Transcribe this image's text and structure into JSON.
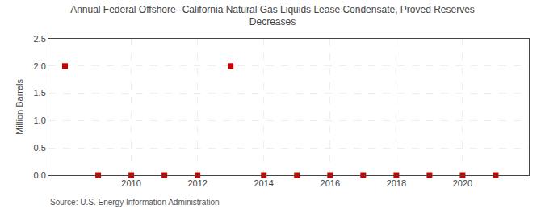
{
  "chart_data": {
    "type": "scatter",
    "title": "Annual Federal Offshore--California Natural Gas Liquids Lease Condensate, Proved Reserves\nDecreases",
    "ylabel": "Million Barrels",
    "source": "Source: U.S. Energy Information Administration",
    "x": [
      2008,
      2009,
      2010,
      2011,
      2012,
      2013,
      2014,
      2015,
      2016,
      2017,
      2018,
      2019,
      2020,
      2021
    ],
    "values": [
      2.0,
      0.0,
      0.0,
      0.0,
      0.0,
      2.0,
      0.0,
      0.0,
      0.0,
      0.0,
      0.0,
      0.0,
      0.0,
      0.0
    ],
    "color": "#cc0000",
    "marker": "square",
    "xlim": [
      2007.5,
      2022.0
    ],
    "ylim": [
      0.0,
      2.5
    ],
    "xticks": [
      2010,
      2012,
      2014,
      2016,
      2018,
      2020
    ],
    "yticks": [
      {
        "value": 0.0,
        "label": "0.0"
      },
      0.5,
      {
        "value": 1.0,
        "label": "1.0"
      },
      1.5,
      {
        "value": 2.0,
        "label": "2.0"
      },
      2.5
    ],
    "grid": true
  }
}
